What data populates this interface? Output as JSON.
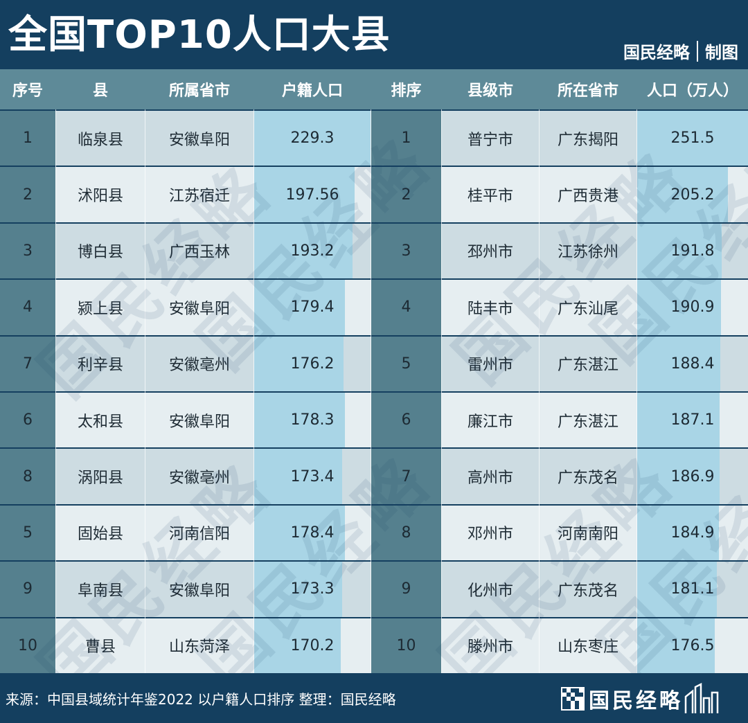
{
  "title": "全国TOP10人口大县",
  "credit": {
    "org": "国民经略",
    "label": "制图"
  },
  "colors": {
    "header_bg": "#143f5f",
    "col_header_bg": "#5e8a98",
    "bar": "#a9d5e6",
    "rank_dark": "#55808e"
  },
  "left_table": {
    "headers": [
      "序号",
      "县",
      "所属省市",
      "户籍人口"
    ],
    "rows": [
      {
        "rank": "1",
        "name": "临泉县",
        "region": "安徽阜阳",
        "value": "229.3"
      },
      {
        "rank": "2",
        "name": "沭阳县",
        "region": "江苏宿迁",
        "value": "197.56"
      },
      {
        "rank": "3",
        "name": "博白县",
        "region": "广西玉林",
        "value": "193.2"
      },
      {
        "rank": "4",
        "name": "颍上县",
        "region": "安徽阜阳",
        "value": "179.4"
      },
      {
        "rank": "7",
        "name": "利辛县",
        "region": "安徽亳州",
        "value": "176.2"
      },
      {
        "rank": "6",
        "name": "太和县",
        "region": "安徽阜阳",
        "value": "178.3"
      },
      {
        "rank": "8",
        "name": "涡阳县",
        "region": "安徽亳州",
        "value": "173.4"
      },
      {
        "rank": "5",
        "name": "固始县",
        "region": "河南信阳",
        "value": "178.4"
      },
      {
        "rank": "9",
        "name": "阜南县",
        "region": "安徽阜阳",
        "value": "173.3"
      },
      {
        "rank": "10",
        "name": "曹县",
        "region": "山东菏泽",
        "value": "170.2"
      }
    ]
  },
  "right_table": {
    "headers": [
      "排序",
      "县级市",
      "所在省市",
      "人口（万人）"
    ],
    "rows": [
      {
        "rank": "1",
        "name": "普宁市",
        "region": "广东揭阳",
        "value": "251.5"
      },
      {
        "rank": "2",
        "name": "桂平市",
        "region": "广西贵港",
        "value": "205.2"
      },
      {
        "rank": "3",
        "name": "邳州市",
        "region": "江苏徐州",
        "value": "191.8"
      },
      {
        "rank": "4",
        "name": "陆丰市",
        "region": "广东汕尾",
        "value": "190.9"
      },
      {
        "rank": "5",
        "name": "雷州市",
        "region": "广东湛江",
        "value": "188.4"
      },
      {
        "rank": "6",
        "name": "廉江市",
        "region": "广东湛江",
        "value": "187.1"
      },
      {
        "rank": "7",
        "name": "高州市",
        "region": "广东茂名",
        "value": "186.9"
      },
      {
        "rank": "8",
        "name": "邓州市",
        "region": "河南南阳",
        "value": "184.9"
      },
      {
        "rank": "9",
        "name": "化州市",
        "region": "广东茂名",
        "value": "181.1"
      },
      {
        "rank": "10",
        "name": "滕州市",
        "region": "山东枣庄",
        "value": "176.5"
      }
    ]
  },
  "chart_data": [
    {
      "type": "bar",
      "categories": [
        "临泉县",
        "沭阳县",
        "博白县",
        "颍上县",
        "利辛县",
        "太和县",
        "涡阳县",
        "固始县",
        "阜南县",
        "曹县"
      ],
      "values": [
        229.3,
        197.56,
        193.2,
        179.4,
        176.2,
        178.3,
        173.4,
        178.4,
        173.3,
        170.2
      ],
      "ylabel": "户籍人口"
    },
    {
      "type": "bar",
      "categories": [
        "普宁市",
        "桂平市",
        "邳州市",
        "陆丰市",
        "雷州市",
        "廉江市",
        "高州市",
        "邓州市",
        "化州市",
        "滕州市"
      ],
      "values": [
        251.5,
        205.2,
        191.8,
        190.9,
        188.4,
        187.1,
        186.9,
        184.9,
        181.1,
        176.5
      ],
      "ylabel": "人口（万人）"
    }
  ],
  "watermark": "国民经略",
  "footer": {
    "source": "来源：中国县域统计年鉴2022 以户籍人口排序 整理：国民经略",
    "logo": "国民经略"
  }
}
